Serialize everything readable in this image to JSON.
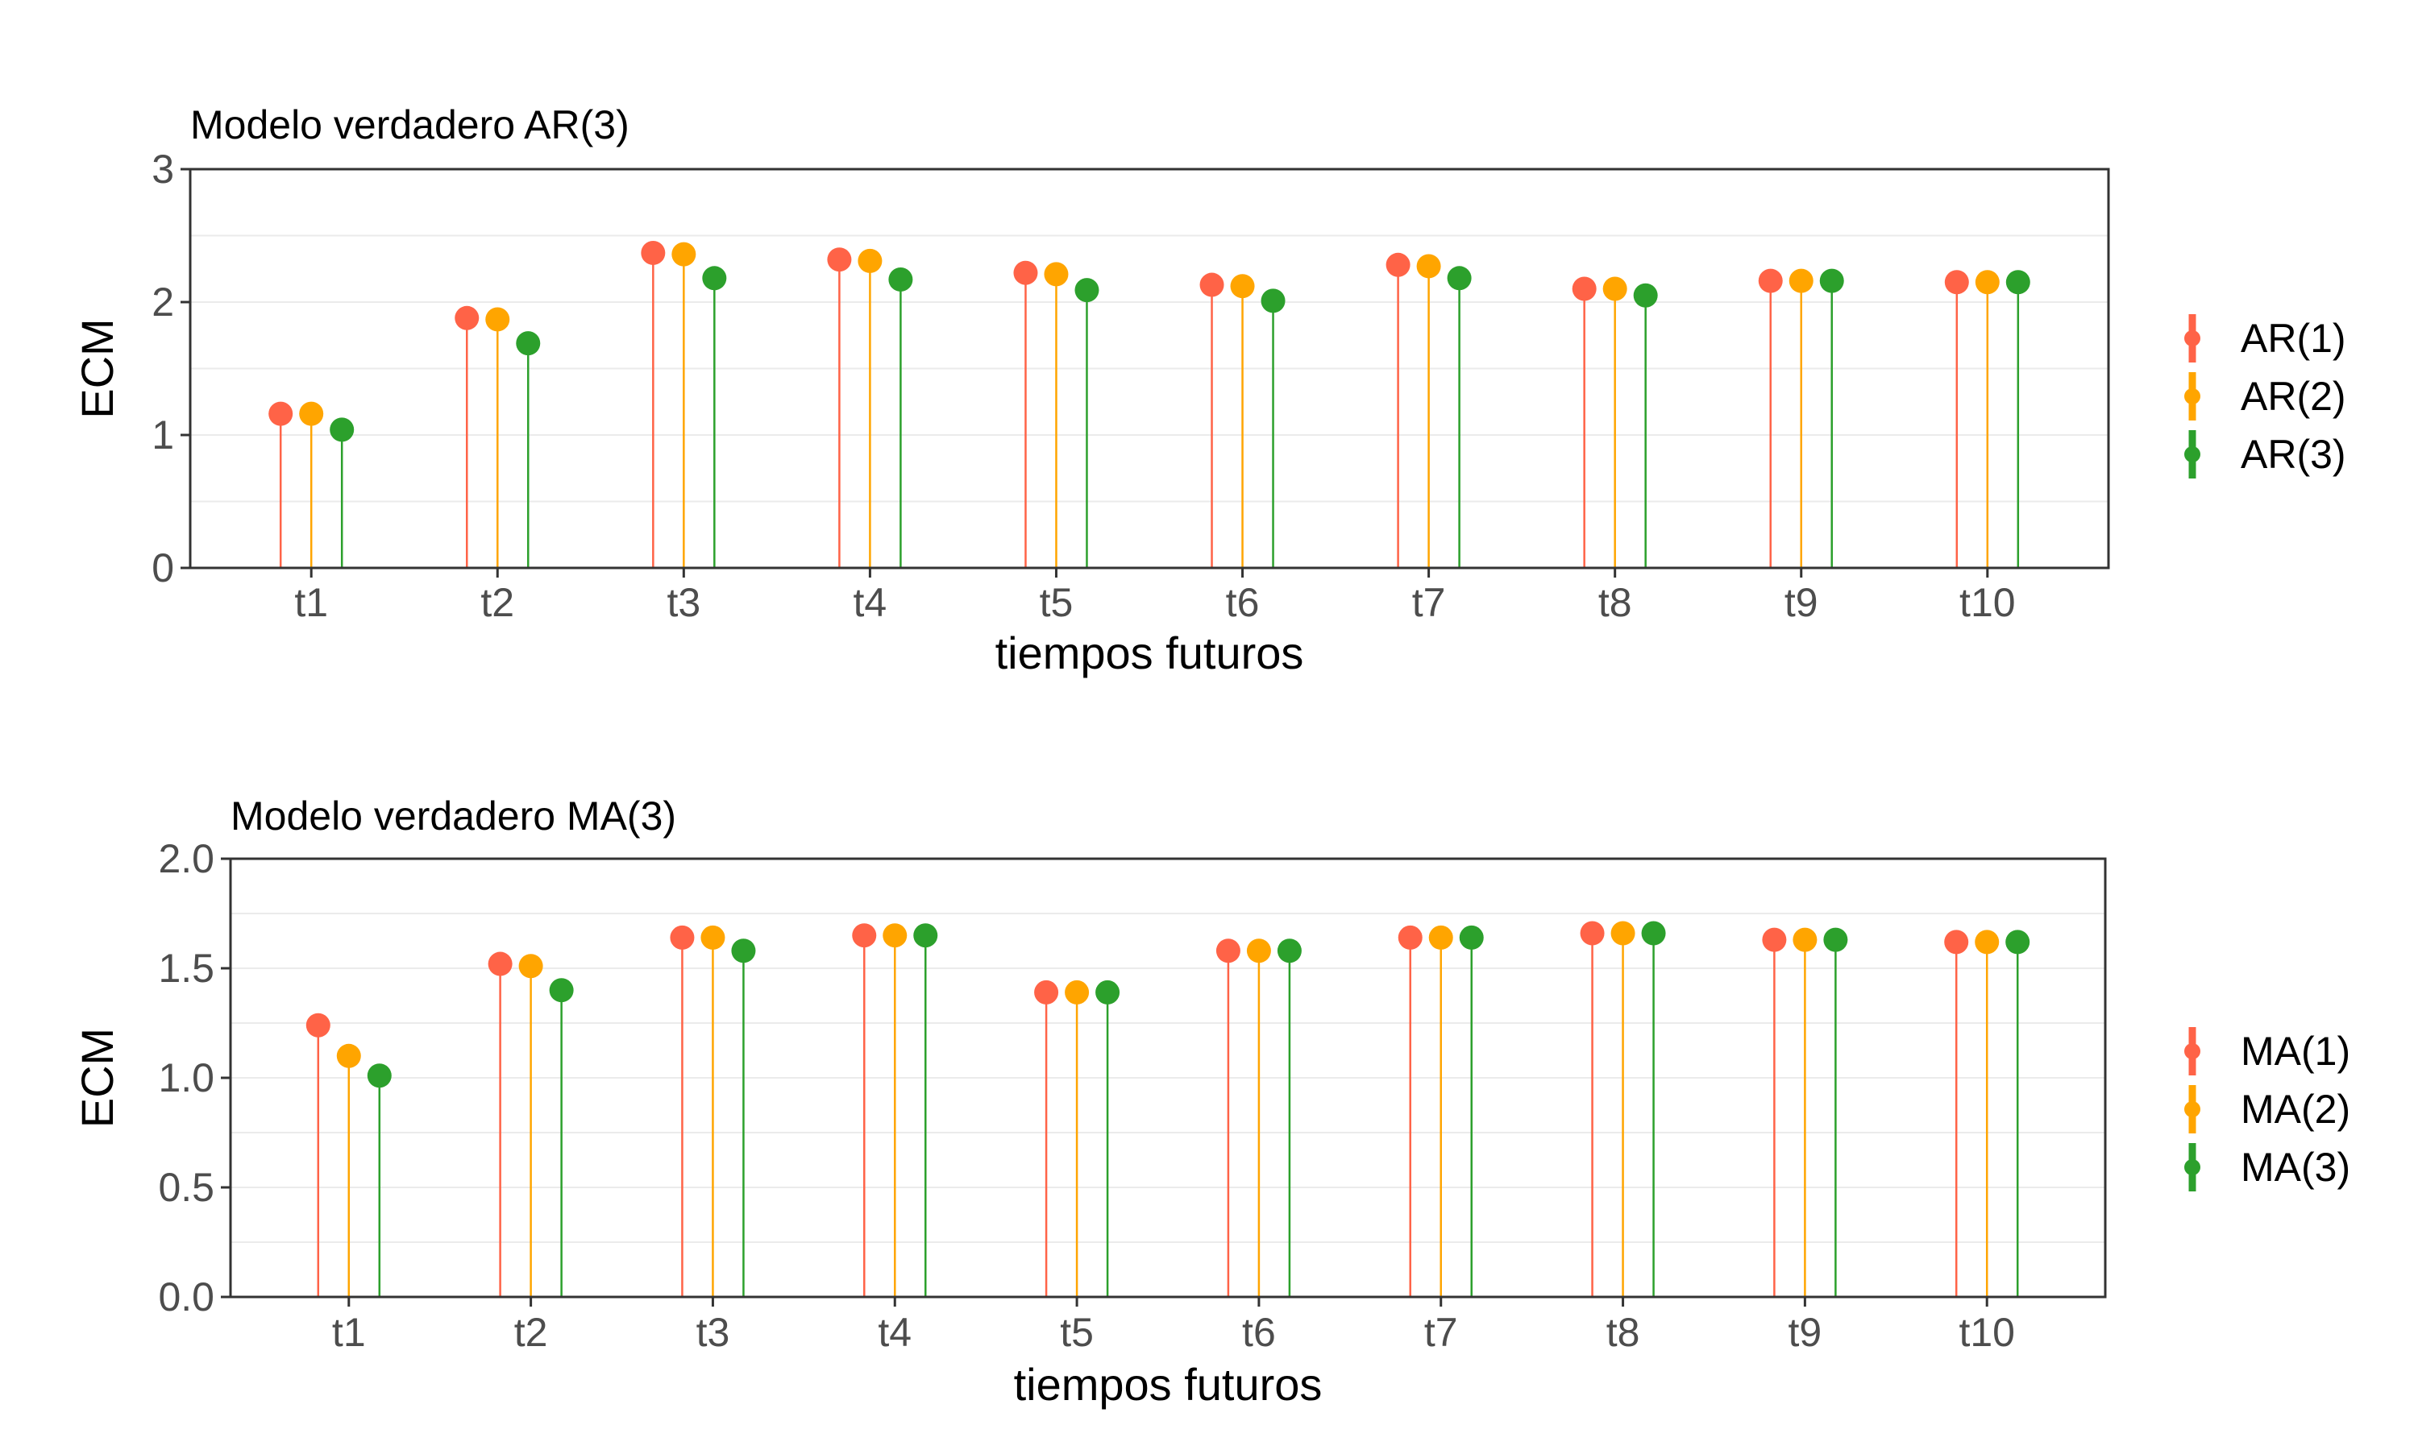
{
  "chart_data": [
    {
      "type": "lollipop",
      "title": "Modelo verdadero AR(3)",
      "xlabel": "tiempos futuros",
      "ylabel": "ECM",
      "ylim": [
        0,
        3
      ],
      "yticks": [
        "0",
        "1",
        "2",
        "3"
      ],
      "ytick_values": [
        0,
        1,
        2,
        3
      ],
      "categories": [
        "t1",
        "t2",
        "t3",
        "t4",
        "t5",
        "t6",
        "t7",
        "t8",
        "t9",
        "t10"
      ],
      "grid": true,
      "legend_position": "right",
      "series": [
        {
          "name": "AR(1)",
          "color": "#FF6347",
          "values": [
            1.16,
            1.88,
            2.37,
            2.32,
            2.22,
            2.13,
            2.28,
            2.1,
            2.16,
            2.15
          ]
        },
        {
          "name": "AR(2)",
          "color": "#FFA500",
          "values": [
            1.16,
            1.87,
            2.36,
            2.31,
            2.21,
            2.12,
            2.27,
            2.1,
            2.16,
            2.15
          ]
        },
        {
          "name": "AR(3)",
          "color": "#2CA02C",
          "values": [
            1.04,
            1.69,
            2.18,
            2.17,
            2.09,
            2.01,
            2.18,
            2.05,
            2.16,
            2.15
          ]
        }
      ]
    },
    {
      "type": "lollipop",
      "title": "Modelo verdadero MA(3)",
      "xlabel": "tiempos futuros",
      "ylabel": "ECM",
      "ylim": [
        0,
        2
      ],
      "yticks": [
        "0.0",
        "0.5",
        "1.0",
        "1.5",
        "2.0"
      ],
      "ytick_values": [
        0,
        0.5,
        1,
        1.5,
        2
      ],
      "categories": [
        "t1",
        "t2",
        "t3",
        "t4",
        "t5",
        "t6",
        "t7",
        "t8",
        "t9",
        "t10"
      ],
      "grid": true,
      "legend_position": "right",
      "series": [
        {
          "name": "MA(1)",
          "color": "#FF6347",
          "values": [
            1.24,
            1.52,
            1.64,
            1.65,
            1.39,
            1.58,
            1.64,
            1.66,
            1.63,
            1.62
          ]
        },
        {
          "name": "MA(2)",
          "color": "#FFA500",
          "values": [
            1.1,
            1.51,
            1.64,
            1.65,
            1.39,
            1.58,
            1.64,
            1.66,
            1.63,
            1.62
          ]
        },
        {
          "name": "MA(3)",
          "color": "#2CA02C",
          "values": [
            1.01,
            1.4,
            1.58,
            1.65,
            1.39,
            1.58,
            1.64,
            1.66,
            1.63,
            1.62
          ]
        }
      ]
    }
  ]
}
